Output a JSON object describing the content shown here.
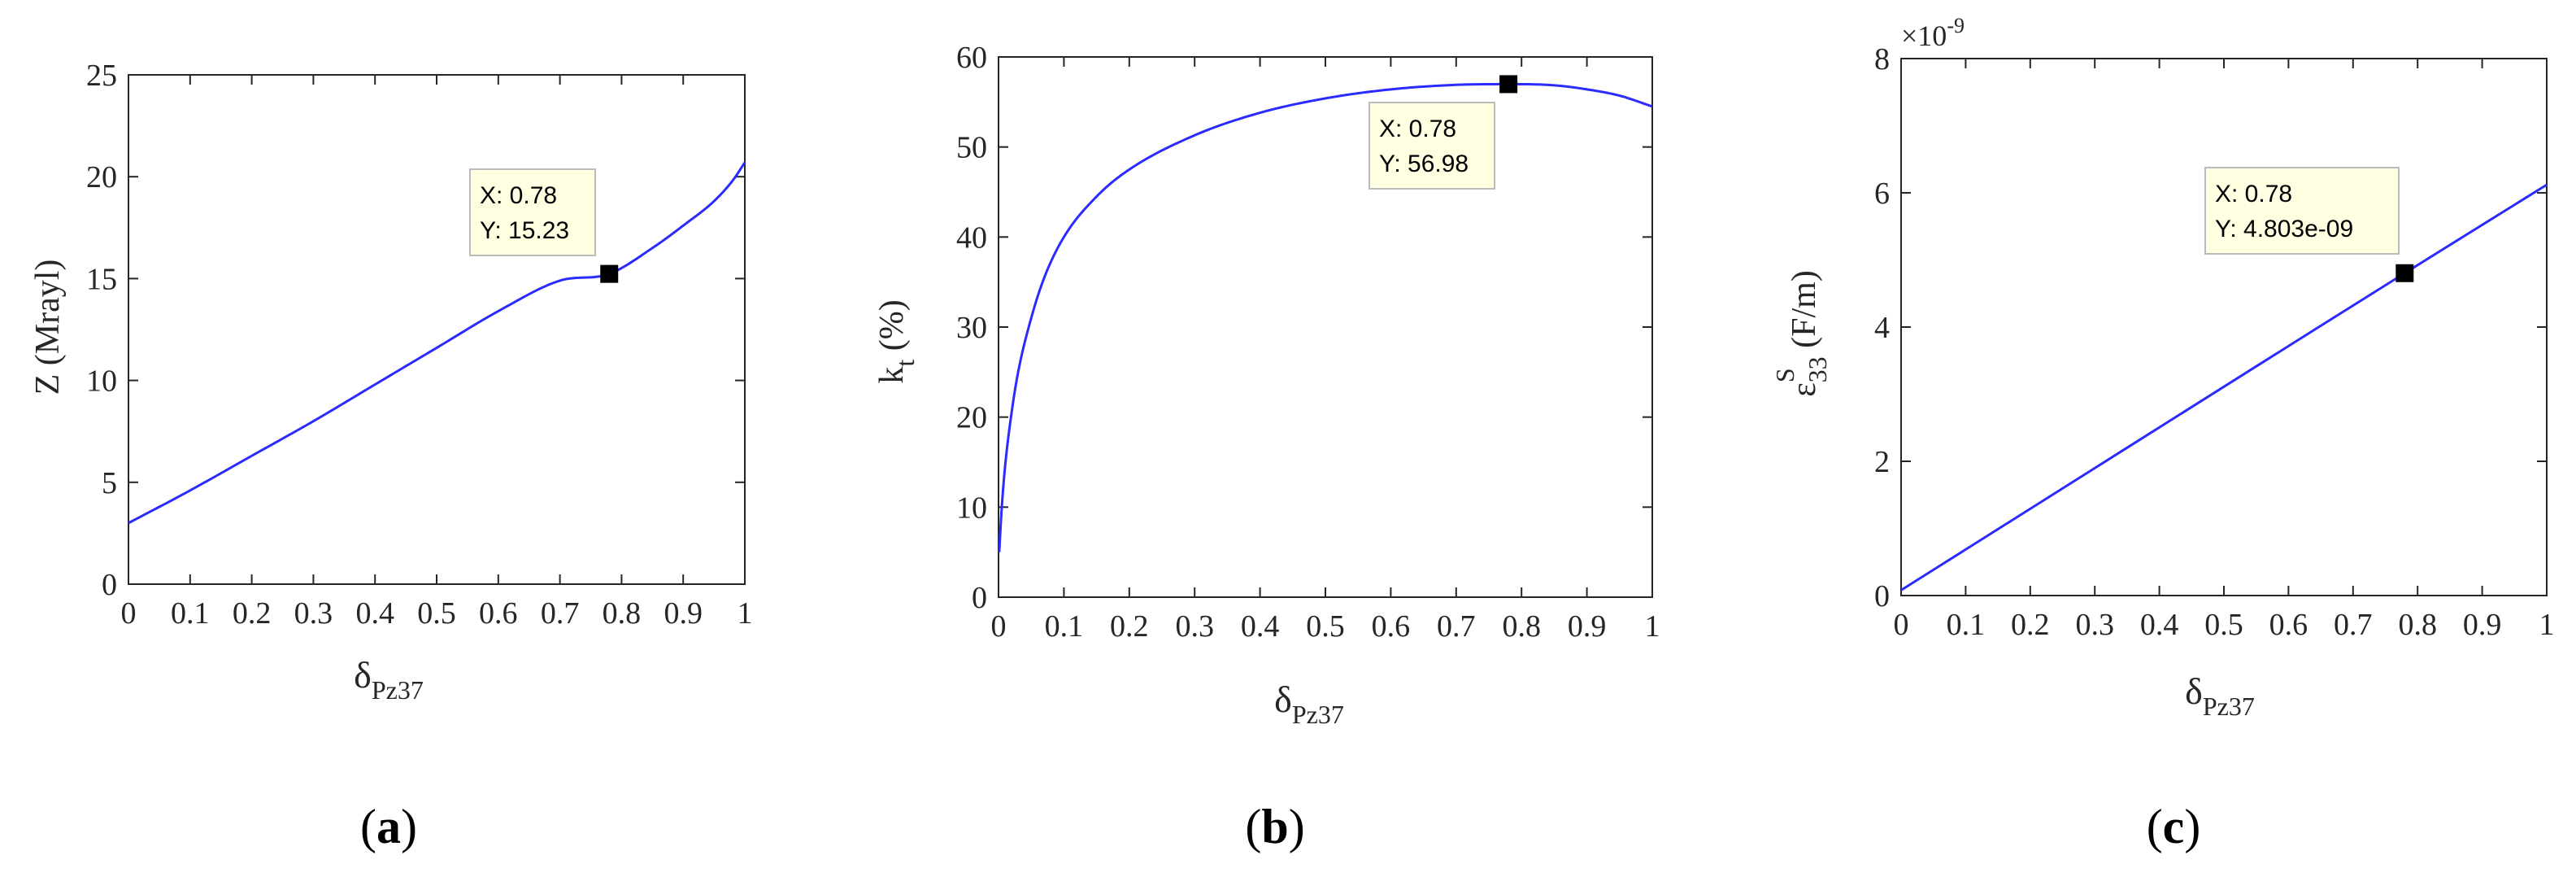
{
  "chart_data": [
    {
      "type": "line",
      "panel": "a",
      "ylabel": "Z (Mrayl)",
      "xlabel": {
        "main": "δ",
        "sub": "Pz37"
      },
      "xlim": [
        0,
        1
      ],
      "ylim": [
        0,
        25
      ],
      "xticks": [
        "0",
        "0.1",
        "0.2",
        "0.3",
        "0.4",
        "0.5",
        "0.6",
        "0.7",
        "0.8",
        "0.9",
        "1"
      ],
      "yticks": [
        "0",
        "5",
        "10",
        "15",
        "20",
        "25"
      ],
      "series": [
        {
          "color": "#2b2bff",
          "x": [
            0,
            0.1,
            0.2,
            0.3,
            0.4,
            0.5,
            0.6,
            0.7,
            0.78,
            0.85,
            0.9,
            0.95,
            0.98,
            1.0
          ],
          "y": [
            3.0,
            4.6,
            6.3,
            8.0,
            9.8,
            11.6,
            13.4,
            14.9,
            15.23,
            16.5,
            17.6,
            18.8,
            19.8,
            20.7
          ]
        }
      ],
      "datatip": {
        "x": 0.78,
        "y": 15.23,
        "line1": "X: 0.78",
        "line2": "Y: 15.23"
      }
    },
    {
      "type": "line",
      "panel": "b",
      "ylabel": {
        "main": "k",
        "sub": "t",
        "rest": " (%)"
      },
      "xlabel": {
        "main": "δ",
        "sub": "Pz37"
      },
      "xlim": [
        0,
        1
      ],
      "ylim": [
        0,
        60
      ],
      "xticks": [
        "0",
        "0.1",
        "0.2",
        "0.3",
        "0.4",
        "0.5",
        "0.6",
        "0.7",
        "0.8",
        "0.9",
        "1"
      ],
      "yticks": [
        "0",
        "10",
        "20",
        "30",
        "40",
        "50",
        "60"
      ],
      "series": [
        {
          "color": "#2b2bff",
          "x": [
            0.001,
            0.005,
            0.01,
            0.02,
            0.03,
            0.05,
            0.07,
            0.1,
            0.15,
            0.2,
            0.3,
            0.4,
            0.5,
            0.6,
            0.7,
            0.78,
            0.85,
            0.9,
            0.95,
            1.0
          ],
          "y": [
            5.0,
            10.0,
            14.5,
            20.5,
            25.0,
            31.0,
            35.5,
            40.0,
            44.5,
            47.5,
            51.3,
            53.8,
            55.4,
            56.4,
            56.9,
            56.98,
            56.85,
            56.4,
            55.7,
            54.5
          ]
        }
      ],
      "datatip": {
        "x": 0.78,
        "y": 56.98,
        "line1": "X: 0.78",
        "line2": "Y: 56.98"
      }
    },
    {
      "type": "line",
      "panel": "c",
      "ylabel": {
        "main": "ε",
        "sup": "S",
        "sub": "33",
        "rest": " (F/m)"
      },
      "xlabel": {
        "main": "δ",
        "sub": "Pz37"
      },
      "yexponent": {
        "base": "×10",
        "power": "-9"
      },
      "xlim": [
        0,
        1
      ],
      "ylim": [
        0,
        8
      ],
      "xticks": [
        "0",
        "0.1",
        "0.2",
        "0.3",
        "0.4",
        "0.5",
        "0.6",
        "0.7",
        "0.8",
        "0.9",
        "1"
      ],
      "yticks": [
        "0",
        "2",
        "4",
        "6",
        "8"
      ],
      "series": [
        {
          "color": "#2b2bff",
          "x": [
            0,
            0.78,
            1.0
          ],
          "y": [
            0.08,
            4.803,
            6.12
          ]
        }
      ],
      "datatip": {
        "x": 0.78,
        "y": 4.803,
        "line1": "X: 0.78",
        "line2": "Y: 4.803e-09"
      }
    }
  ],
  "captions": [
    "(a)",
    "(b)",
    "(c)"
  ],
  "caption_letters": [
    "a",
    "b",
    "c"
  ]
}
